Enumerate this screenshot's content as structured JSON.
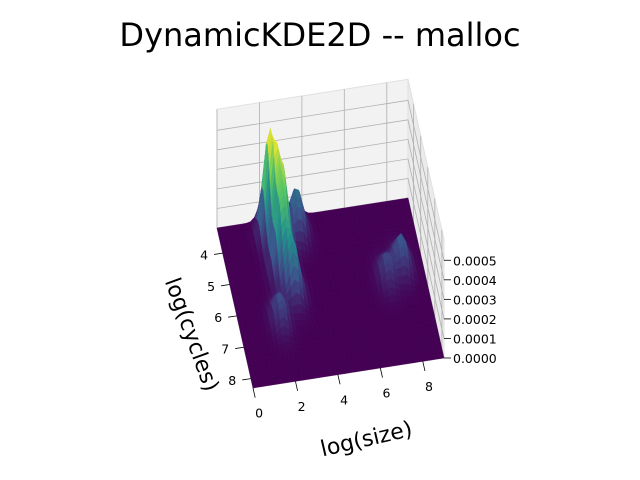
{
  "chart_data": {
    "type": "surface3d",
    "title": "DynamicKDE2D -- malloc",
    "xlabel": "log(size)",
    "ylabel": "log(cycles)",
    "zlabel": "",
    "x_ticks": [
      "0",
      "2",
      "4",
      "6",
      "8"
    ],
    "y_ticks": [
      "4",
      "5",
      "6",
      "7",
      "8"
    ],
    "z_ticks": [
      "0.0000",
      "0.0001",
      "0.0002",
      "0.0003",
      "0.0004",
      "0.0005"
    ],
    "xlim": [
      0,
      9
    ],
    "ylim": [
      3.2,
      8.3
    ],
    "zlim": [
      0,
      0.00055
    ],
    "colormap": "viridis",
    "colors": {
      "low": "#440154",
      "mid": "#21918c",
      "high": "#fde725",
      "pane": "#f2f2f2",
      "grid": "#b0b0b0"
    },
    "peaks": [
      {
        "x": 2.3,
        "y": 3.8,
        "density": 0.00055
      },
      {
        "x": 2.7,
        "y": 4.4,
        "density": 0.00038
      },
      {
        "x": 2.4,
        "y": 5.0,
        "density": 0.0003
      },
      {
        "x": 2.8,
        "y": 5.6,
        "density": 0.00024
      },
      {
        "x": 3.6,
        "y": 3.7,
        "density": 0.00022
      },
      {
        "x": 1.9,
        "y": 6.4,
        "density": 0.00014
      },
      {
        "x": 8.0,
        "y": 5.3,
        "density": 0.00016
      },
      {
        "x": 7.2,
        "y": 5.6,
        "density": 0.00012
      }
    ]
  }
}
